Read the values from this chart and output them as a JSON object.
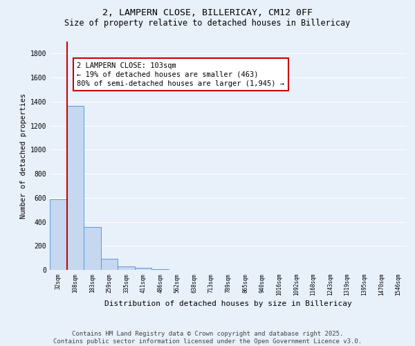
{
  "title_line1": "2, LAMPERN CLOSE, BILLERICAY, CM12 0FF",
  "title_line2": "Size of property relative to detached houses in Billericay",
  "xlabel": "Distribution of detached houses by size in Billericay",
  "ylabel": "Number of detached properties",
  "categories": [
    "32sqm",
    "108sqm",
    "183sqm",
    "259sqm",
    "335sqm",
    "411sqm",
    "486sqm",
    "562sqm",
    "638sqm",
    "713sqm",
    "789sqm",
    "865sqm",
    "940sqm",
    "1016sqm",
    "1092sqm",
    "1168sqm",
    "1243sqm",
    "1319sqm",
    "1395sqm",
    "1470sqm",
    "1546sqm"
  ],
  "values": [
    590,
    1365,
    355,
    90,
    30,
    15,
    5,
    0,
    0,
    0,
    0,
    0,
    0,
    0,
    0,
    0,
    0,
    0,
    0,
    0,
    0
  ],
  "bar_color": "#c5d8f0",
  "bar_edge_color": "#5b9bd5",
  "annotation_line1": "2 LAMPERN CLOSE: 103sqm",
  "annotation_line2": "← 19% of detached houses are smaller (463)",
  "annotation_line3": "80% of semi-detached houses are larger (1,945) →",
  "annotation_box_color": "#ffffff",
  "annotation_box_edge_color": "#cc0000",
  "vline_x": 0.5,
  "vline_color": "#cc0000",
  "ylim": [
    0,
    1900
  ],
  "yticks": [
    0,
    200,
    400,
    600,
    800,
    1000,
    1200,
    1400,
    1600,
    1800
  ],
  "bg_color": "#e8f0fa",
  "grid_color": "#ffffff",
  "footer_line1": "Contains HM Land Registry data © Crown copyright and database right 2025.",
  "footer_line2": "Contains public sector information licensed under the Open Government Licence v3.0.",
  "title_fontsize": 9.5,
  "subtitle_fontsize": 8.5,
  "annotation_fontsize": 7.5,
  "footer_fontsize": 6.5,
  "ylabel_fontsize": 7.5,
  "xlabel_fontsize": 8,
  "tick_fontsize": 7,
  "xtick_fontsize": 5.5
}
